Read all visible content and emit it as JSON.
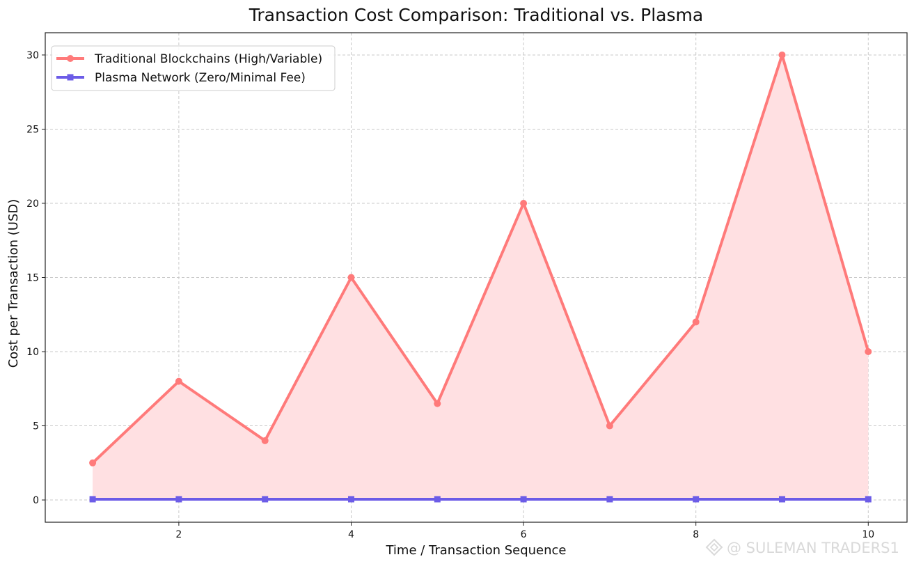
{
  "chart_data": {
    "type": "line",
    "title": "Transaction Cost Comparison: Traditional vs. Plasma",
    "xlabel": "Time / Transaction Sequence",
    "ylabel": "Cost per Transaction (USD)",
    "xlim": [
      0.45,
      10.45
    ],
    "ylim": [
      -1.5,
      31.5
    ],
    "x": [
      1,
      2,
      3,
      4,
      5,
      6,
      7,
      8,
      9,
      10
    ],
    "x_ticks": [
      2,
      4,
      6,
      8,
      10
    ],
    "y_ticks": [
      0,
      5,
      10,
      15,
      20,
      25,
      30
    ],
    "grid": true,
    "legend_position": "top-left",
    "series": [
      {
        "name": "Traditional Blockchains (High/Variable)",
        "values": [
          2.5,
          8,
          4,
          15,
          6.5,
          20,
          5,
          12,
          30,
          10
        ],
        "color": "#ff7a7a",
        "fill_color": "#ffe0e2",
        "marker": "circle",
        "filled_area": true
      },
      {
        "name": "Plasma Network (Zero/Minimal Fee)",
        "values": [
          0.05,
          0.05,
          0.05,
          0.05,
          0.05,
          0.05,
          0.05,
          0.05,
          0.05,
          0.05
        ],
        "color": "#6c5ce7",
        "marker": "square",
        "filled_area": false
      }
    ]
  },
  "watermark": {
    "text": "@ SULEMAN TRADERS1",
    "icon": "diamond-logo-icon"
  }
}
